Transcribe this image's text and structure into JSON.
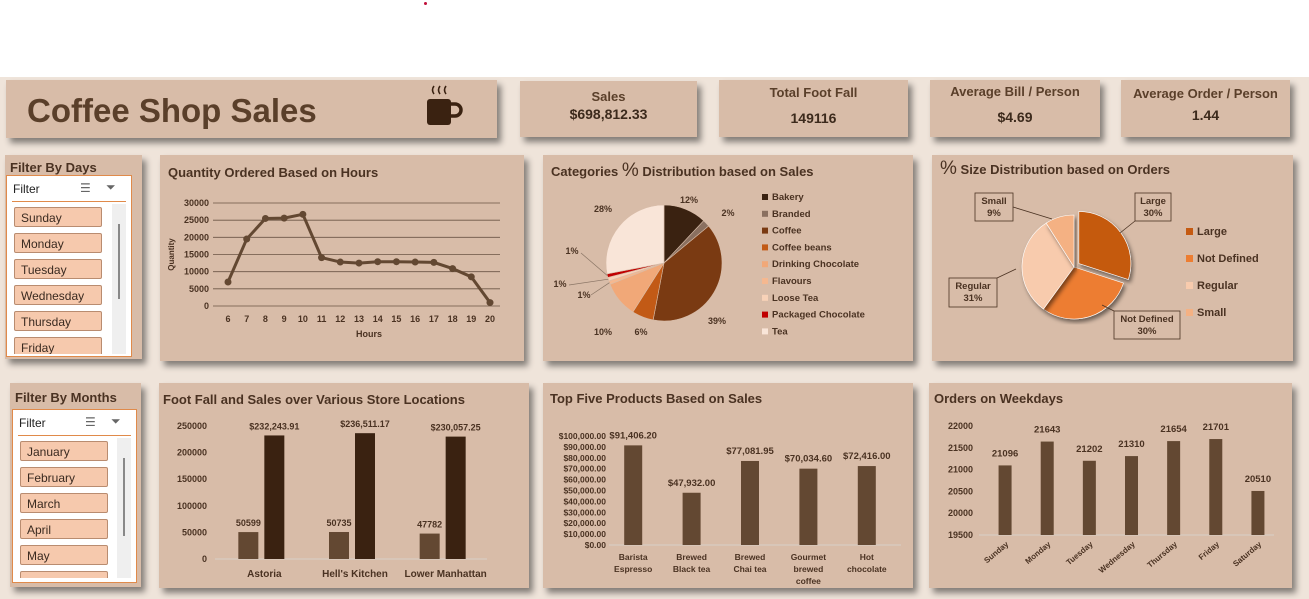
{
  "title": "Coffee Shop Sales",
  "kpis": {
    "sales": {
      "label": "Sales",
      "value": "$698,812.33"
    },
    "footfall": {
      "label": "Total Foot Fall",
      "value": "149116"
    },
    "avg_bill": {
      "label": "Average Bill / Person",
      "value": "$4.69"
    },
    "avg_order": {
      "label": "Average Order / Person",
      "value": "1.44"
    }
  },
  "filter_days": {
    "title": "Filter By Days",
    "header": "Filter",
    "items": [
      "Sunday",
      "Monday",
      "Tuesday",
      "Wednesday",
      "Thursday",
      "Friday"
    ]
  },
  "filter_months": {
    "title": "Filter By Months",
    "header": "Filter",
    "items": [
      "January",
      "February",
      "March",
      "April",
      "May"
    ]
  },
  "colors": {
    "accent": "#e08a4a",
    "card": "#d8bca8",
    "dark_brown": "#3a2211",
    "mid_brown": "#634832"
  },
  "icons": [
    "coffee-cup-icon",
    "multi-select-icon",
    "clear-filter-icon"
  ],
  "chart_data": [
    {
      "id": "hours",
      "type": "line",
      "title": "Quantity Ordered Based on Hours",
      "xlabel": "Hours",
      "ylabel": "Quantity",
      "x": [
        6,
        7,
        8,
        9,
        10,
        11,
        12,
        13,
        14,
        15,
        16,
        17,
        18,
        19,
        20
      ],
      "values": [
        7000,
        19500,
        25500,
        25600,
        26700,
        14100,
        12800,
        12500,
        12900,
        12900,
        12800,
        12700,
        10900,
        8500,
        1000
      ],
      "yticks": [
        0,
        5000,
        10000,
        15000,
        20000,
        25000,
        30000
      ],
      "ylim": [
        0,
        30000
      ],
      "grid": true
    },
    {
      "id": "categories",
      "type": "pie",
      "title": "Categories % Distribution based on Sales",
      "categories": [
        "Bakery",
        "Branded",
        "Coffee",
        "Coffee beans",
        "Drinking Chocolate",
        "Flavours",
        "Loose Tea",
        "Packaged Chocolate",
        "Tea"
      ],
      "values": [
        12,
        2,
        39,
        6,
        10,
        1,
        1,
        1,
        28
      ],
      "data_labels": [
        "12%",
        "2%",
        "39%",
        "6%",
        "10%",
        "1%",
        "1%",
        "1%",
        "28%"
      ],
      "colors": [
        "#3a2211",
        "#8a7060",
        "#7a3a12",
        "#c25a16",
        "#f1a878",
        "#f5b890",
        "#f8d2b8",
        "#c00000",
        "#f9e5d8"
      ],
      "legend": "right"
    },
    {
      "id": "sizes",
      "type": "pie",
      "title": "% Size Distribution based on Orders",
      "categories": [
        "Large",
        "Not Defined",
        "Regular",
        "Small"
      ],
      "values": [
        30,
        30,
        31,
        9
      ],
      "data_labels": [
        "Large\n30%",
        "Not Defined\n30%",
        "Regular\n31%",
        "Small\n9%"
      ],
      "colors": [
        "#c55a11",
        "#ed7d31",
        "#f8cbad",
        "#f4b183"
      ],
      "legend": "right"
    },
    {
      "id": "locations",
      "type": "bar",
      "title": "Foot Fall and Sales over Various Store Locations",
      "categories": [
        "Astoria",
        "Hell's Kitchen",
        "Lower Manhattan"
      ],
      "series": [
        {
          "values": [
            50599,
            50735,
            47782
          ],
          "data_labels": [
            "50599",
            "50735",
            "47782"
          ],
          "color": "#634832"
        },
        {
          "values": [
            232243.91,
            236511.17,
            230057.25
          ],
          "data_labels": [
            "$232,243.91",
            "$236,511.17",
            "$230,057.25"
          ],
          "color": "#3a2211"
        }
      ],
      "yticks": [
        0,
        50000,
        100000,
        150000,
        200000,
        250000
      ],
      "ylim": [
        0,
        250000
      ]
    },
    {
      "id": "products",
      "type": "bar",
      "title": "Top Five Products Based on Sales",
      "categories": [
        "Barista Espresso",
        "Brewed Black tea",
        "Brewed Chai tea",
        "Gourmet brewed coffee",
        "Hot chocolate"
      ],
      "category_lines": [
        [
          "Barista",
          "Espresso"
        ],
        [
          "Brewed",
          "Black tea"
        ],
        [
          "Brewed",
          "Chai tea"
        ],
        [
          "Gourmet",
          "brewed",
          "coffee"
        ],
        [
          "Hot",
          "chocolate"
        ]
      ],
      "values": [
        91406.2,
        47932.0,
        77081.95,
        70034.6,
        72416.0
      ],
      "data_labels": [
        "$91,406.20",
        "$47,932.00",
        "$77,081.95",
        "$70,034.60",
        "$72,416.00"
      ],
      "ytick_values": [
        0,
        10000,
        20000,
        30000,
        40000,
        50000,
        60000,
        70000,
        80000,
        90000,
        100000
      ],
      "ytick_labels": [
        "$0.00",
        "$10,000.00",
        "$20,000.00",
        "$30,000.00",
        "$40,000.00",
        "$50,000.00",
        "$60,000.00",
        "$70,000.00",
        "$80,000.00",
        "$90,000.00",
        "$100,000.00"
      ],
      "ylim": [
        0,
        100000
      ],
      "color": "#634832"
    },
    {
      "id": "weekdays",
      "type": "bar",
      "title": "Orders on Weekdays",
      "categories": [
        "Sunday",
        "Monday",
        "Tuesday",
        "Wednesday",
        "Thursday",
        "Friday",
        "Saturday"
      ],
      "values": [
        21096,
        21643,
        21202,
        21310,
        21654,
        21701,
        20510
      ],
      "data_labels": [
        "21096",
        "21643",
        "21202",
        "21310",
        "21654",
        "21701",
        "20510"
      ],
      "yticks": [
        19500,
        20000,
        20500,
        21000,
        21500,
        22000
      ],
      "ylim": [
        19500,
        22000
      ],
      "color": "#634832"
    }
  ]
}
